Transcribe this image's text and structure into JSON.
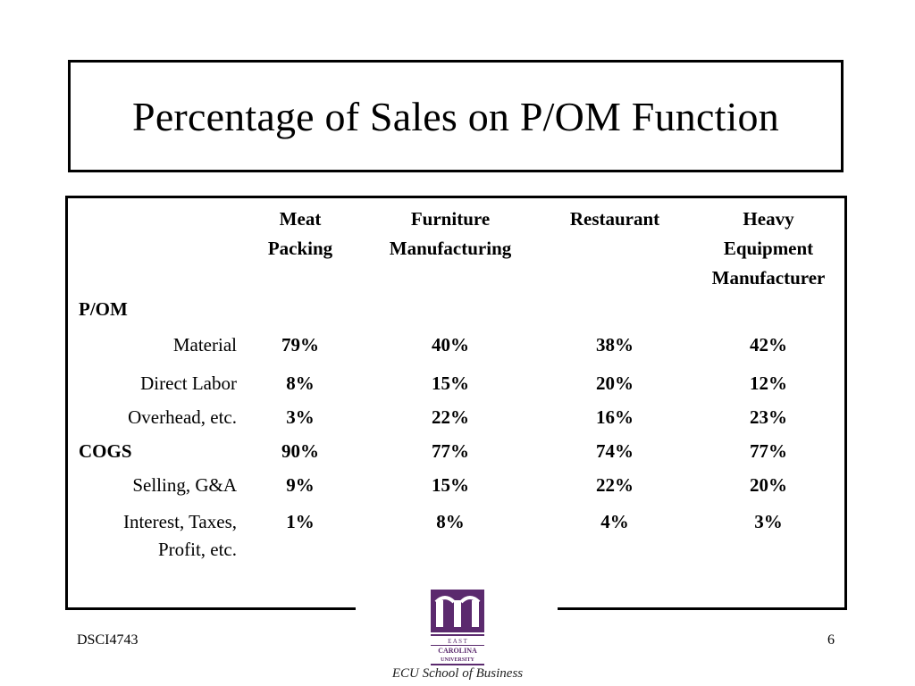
{
  "title": "Percentage of Sales on P/OM Function",
  "columns": [
    {
      "lines": [
        "",
        "Meat",
        "Packing"
      ]
    },
    {
      "lines": [
        "",
        "Furniture",
        "Manufacturing"
      ]
    },
    {
      "lines": [
        "",
        "",
        "Restaurant"
      ]
    },
    {
      "lines": [
        "Heavy",
        "Equipment",
        "Manufacturer"
      ]
    }
  ],
  "section_pom": "P/OM",
  "rows": [
    {
      "label": "Material",
      "values": [
        "79%",
        "40%",
        "38%",
        "42%"
      ]
    },
    {
      "label": "Direct Labor",
      "values": [
        "8%",
        "15%",
        "20%",
        "12%"
      ]
    },
    {
      "label": "Overhead, etc.",
      "values": [
        "3%",
        "22%",
        "16%",
        "23%"
      ]
    },
    {
      "label": "COGS",
      "values": [
        "90%",
        "77%",
        "74%",
        "77%"
      ]
    },
    {
      "label": "Selling, G&A",
      "values": [
        "9%",
        "15%",
        "22%",
        "20%"
      ]
    },
    {
      "label": "Interest, Taxes,",
      "label2": "Profit, etc.",
      "values": [
        "1%",
        "8%",
        "4%",
        "3%"
      ]
    }
  ],
  "footer": {
    "left": "DSCI4743",
    "page": "6"
  },
  "logo": {
    "icon": "ecu-logo-icon",
    "letters": "E A S T",
    "line1": "CAROLINA",
    "line2": "UNIVERSITY",
    "color": "#5b2a6e"
  },
  "school_name": "ECU School of Business"
}
